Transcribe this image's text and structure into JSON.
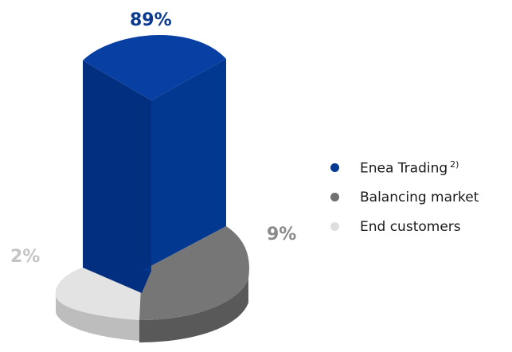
{
  "chart_data": {
    "type": "pie",
    "categories": [
      "Enea Trading",
      "Balancing market",
      "End customers"
    ],
    "values": [
      89,
      9,
      2
    ],
    "data_labels": [
      "89%",
      "9%",
      "2%"
    ],
    "legend_superscript": "2)",
    "legend_position": "right",
    "colors": {
      "enea_trading": "#033893",
      "balancing_market": "#707070",
      "end_customers": "#e2e2e2"
    }
  }
}
